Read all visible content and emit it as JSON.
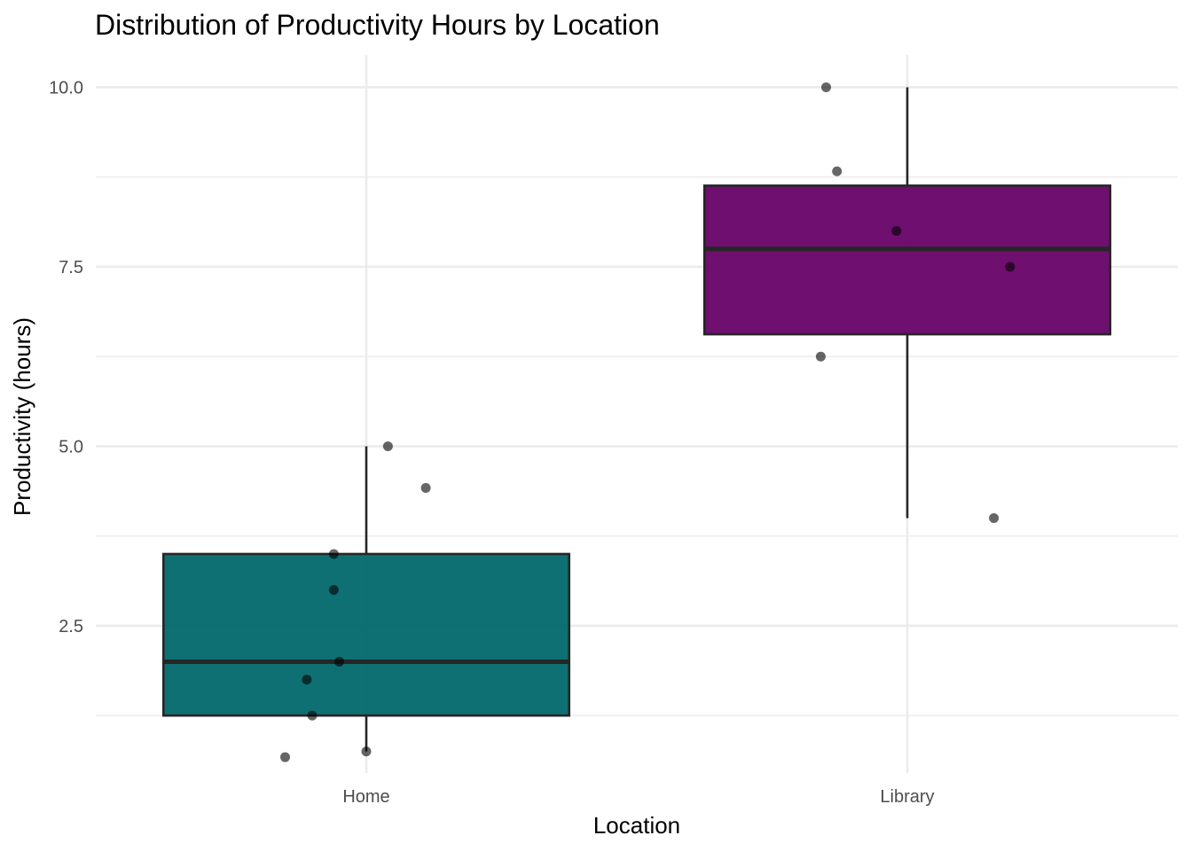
{
  "chart_data": {
    "type": "boxplot",
    "title": "Distribution of Productivity Hours by Location",
    "xlabel": "Location",
    "ylabel": "Productivity (hours)",
    "categories": [
      "Home",
      "Library"
    ],
    "ylim": [
      0.45,
      10.45
    ],
    "y_ticks": [
      2.5,
      5.0,
      7.5,
      10.0
    ],
    "y_tick_labels": [
      "2.5",
      "5.0",
      "7.5",
      "10.0"
    ],
    "grid": true,
    "legend": "none",
    "boxes": [
      {
        "category": "Home",
        "color": "#00676A",
        "q1": 1.25,
        "median": 2.0,
        "q3": 3.5,
        "whisker_low": 0.75,
        "whisker_high": 5.0
      },
      {
        "category": "Library",
        "color": "#660066",
        "q1": 6.56,
        "median": 7.75,
        "q3": 8.63,
        "whisker_low": 4.0,
        "whisker_high": 10.0
      }
    ],
    "points": [
      {
        "category": "Home",
        "y": 5.0,
        "jitter": 0.04
      },
      {
        "category": "Home",
        "y": 4.42,
        "jitter": 0.11
      },
      {
        "category": "Home",
        "y": 3.5,
        "jitter": -0.06
      },
      {
        "category": "Home",
        "y": 3.0,
        "jitter": -0.06
      },
      {
        "category": "Home",
        "y": 2.0,
        "jitter": -0.05
      },
      {
        "category": "Home",
        "y": 1.75,
        "jitter": -0.11
      },
      {
        "category": "Home",
        "y": 1.25,
        "jitter": -0.1
      },
      {
        "category": "Home",
        "y": 0.75,
        "jitter": 0.0
      },
      {
        "category": "Home",
        "y": 0.67,
        "jitter": -0.15
      },
      {
        "category": "Library",
        "y": 10.0,
        "jitter": -0.15
      },
      {
        "category": "Library",
        "y": 8.83,
        "jitter": -0.13
      },
      {
        "category": "Library",
        "y": 8.0,
        "jitter": -0.02
      },
      {
        "category": "Library",
        "y": 7.5,
        "jitter": 0.19
      },
      {
        "category": "Library",
        "y": 6.25,
        "jitter": -0.16
      },
      {
        "category": "Library",
        "y": 4.0,
        "jitter": 0.16
      }
    ],
    "point_color": "#000000",
    "grid_color": "#EBEBEB"
  }
}
